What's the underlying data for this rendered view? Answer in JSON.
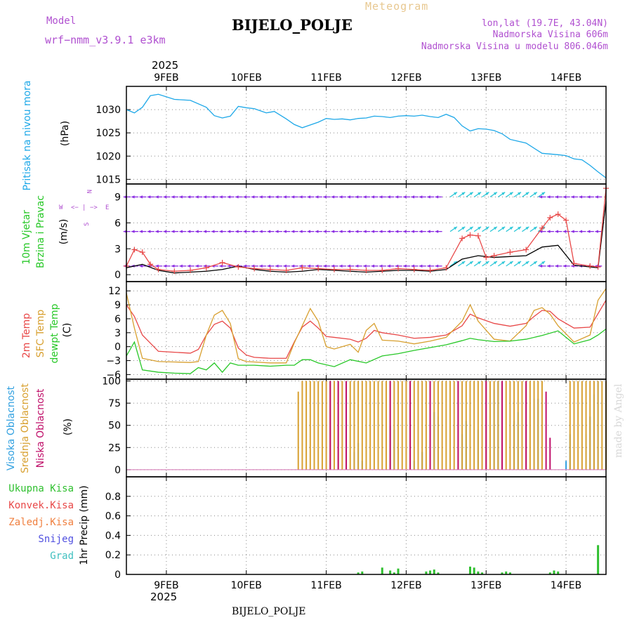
{
  "header": {
    "product": "Meteogram",
    "model_label": "Model",
    "model_name": "wrf−nmm_v3.9.1  e3km",
    "station": "BIJELO_POLJE",
    "lonlat": "lon,lat (19.7E, 43.04N)",
    "altitude": "Nadmorska Visina 606m",
    "model_altitude": "Nadmorska Visina u modelu 806.046m",
    "year": "2025",
    "watermark": "made by Angel",
    "footer_station": "BIJELO_POLJE"
  },
  "colors": {
    "pressure": "#1ea8e8",
    "temp2m": "#e84848",
    "sfc": "#d8a030",
    "dew": "#28c828",
    "high_cloud": "#30a0e0",
    "mid_cloud": "#d8a030",
    "low_cloud": "#c0106a",
    "precip_total": "#30c030",
    "wind_speed_model": "#000000",
    "wind_obs": "#e84848",
    "arrows_calm": "#8a2be2",
    "arrows_strong": "#30c8d8"
  },
  "chart_data": [
    {
      "type": "line",
      "panel": "pressure",
      "title": "Pritisak na nivou mora",
      "ylabel": "(hPa)",
      "ylim": [
        1014,
        1035
      ],
      "yticks": [
        "1015",
        "1020",
        "1025",
        "1030"
      ],
      "ytick_values": [
        1015,
        1020,
        1025,
        1030
      ],
      "series": [
        {
          "name": "Pritisak",
          "color": "#1ea8e8",
          "x": [
            0,
            0.1,
            0.2,
            0.3,
            0.4,
            0.6,
            0.8,
            1.0,
            1.1,
            1.2,
            1.3,
            1.4,
            1.5,
            1.6,
            1.7,
            1.75,
            1.85,
            2.0,
            2.1,
            2.2,
            2.4,
            2.5,
            2.6,
            2.7,
            2.8,
            2.9,
            3.0,
            3.1,
            3.2,
            3.3,
            3.4,
            3.5,
            3.6,
            3.7,
            3.8,
            3.9,
            4.0,
            4.1,
            4.2,
            4.3,
            4.4,
            4.5,
            4.6,
            4.7,
            4.8,
            4.9,
            5.0,
            5.2,
            5.4,
            5.5,
            5.6,
            5.7,
            5.8,
            5.9,
            6.0
          ],
          "values": [
            1030.0,
            1029.3,
            1030.5,
            1033.0,
            1033.3,
            1032.2,
            1032.0,
            1030.5,
            1028.7,
            1028.2,
            1028.6,
            1030.7,
            1030.4,
            1030.2,
            1029.6,
            1029.3,
            1029.6,
            1028.0,
            1026.8,
            1026.1,
            1027.3,
            1028.1,
            1027.9,
            1028.0,
            1027.8,
            1028.1,
            1028.2,
            1028.6,
            1028.5,
            1028.3,
            1028.6,
            1028.7,
            1028.6,
            1028.8,
            1028.5,
            1028.3,
            1029.0,
            1028.3,
            1026.5,
            1025.4,
            1025.9,
            1025.8,
            1025.5,
            1024.8,
            1023.6,
            1023.2,
            1022.8,
            1020.6,
            1020.3,
            1020.1,
            1019.4,
            1019.2,
            1018.0,
            1016.6,
            1015.3
          ]
        }
      ]
    },
    {
      "type": "line",
      "panel": "wind",
      "title": "10m Vjetar",
      "title2": "Brzina i Pravac",
      "ylabel": "(m/s)",
      "compass": {
        "west": "W",
        "east": "E",
        "north": "N",
        "south": "S",
        "left_arrow": "<−",
        "right_arrow": "−>",
        "bar": "|"
      },
      "ylim": [
        -0.8,
        10.5
      ],
      "yticks": [
        "0",
        "3",
        "6",
        "9"
      ],
      "ytick_values": [
        0,
        3,
        6,
        9
      ],
      "arrow_rows": [
        1,
        5,
        9
      ],
      "series": [
        {
          "name": "Brzina vjetra (model)",
          "color": "#000000",
          "x": [
            0,
            0.2,
            0.4,
            0.6,
            0.8,
            1.0,
            1.2,
            1.4,
            1.6,
            1.8,
            2.0,
            2.2,
            2.4,
            2.6,
            2.8,
            3.0,
            3.2,
            3.4,
            3.6,
            3.8,
            4.0,
            4.2,
            4.4,
            4.6,
            4.8,
            5.0,
            5.2,
            5.4,
            5.6,
            5.8,
            5.9,
            6.0
          ],
          "values": [
            0.8,
            1.2,
            0.5,
            0.2,
            0.3,
            0.4,
            0.6,
            1.0,
            0.6,
            0.4,
            0.3,
            0.4,
            0.6,
            0.5,
            0.4,
            0.3,
            0.4,
            0.5,
            0.5,
            0.4,
            0.6,
            1.8,
            2.2,
            2.0,
            2.1,
            2.2,
            3.2,
            3.4,
            1.1,
            0.9,
            0.8,
            8.5
          ]
        },
        {
          "name": "Udari vjetra",
          "color": "#e84848",
          "x": [
            0,
            0.1,
            0.2,
            0.3,
            0.4,
            0.6,
            0.8,
            1.0,
            1.2,
            1.4,
            1.6,
            1.8,
            2.0,
            2.2,
            2.4,
            2.6,
            2.8,
            3.0,
            3.2,
            3.4,
            3.6,
            3.8,
            4.0,
            4.2,
            4.3,
            4.4,
            4.5,
            4.6,
            4.8,
            5.0,
            5.2,
            5.3,
            5.4,
            5.5,
            5.6,
            5.8,
            5.9,
            6.0
          ],
          "values": [
            1.0,
            2.9,
            2.6,
            1.2,
            0.6,
            0.4,
            0.5,
            0.8,
            1.4,
            0.9,
            0.7,
            0.6,
            0.5,
            0.8,
            0.7,
            0.6,
            0.6,
            0.5,
            0.5,
            0.7,
            0.6,
            0.5,
            0.8,
            4.2,
            4.6,
            4.5,
            2.0,
            2.2,
            2.6,
            2.9,
            5.4,
            6.6,
            7.0,
            6.3,
            1.3,
            1.0,
            0.9,
            10.0
          ]
        }
      ]
    },
    {
      "type": "line",
      "panel": "temperature",
      "title": "2m Temp",
      "title2": "SFC Temp",
      "title3": "dewpt Temp",
      "ylabel": "(C)",
      "ylim": [
        -7,
        14
      ],
      "yticks": [
        "−6",
        "−3",
        "0",
        "3",
        "6",
        "9",
        "12"
      ],
      "ytick_values": [
        -6,
        -3,
        0,
        3,
        6,
        9,
        12
      ],
      "series": [
        {
          "name": "2m Temp",
          "color": "#e84848",
          "x": [
            0,
            0.1,
            0.2,
            0.4,
            0.6,
            0.8,
            0.9,
            1.0,
            1.1,
            1.2,
            1.3,
            1.4,
            1.5,
            1.6,
            1.8,
            2.0,
            2.1,
            2.2,
            2.3,
            2.4,
            2.5,
            2.6,
            2.8,
            2.9,
            3.0,
            3.1,
            3.2,
            3.4,
            3.6,
            3.8,
            4.0,
            4.2,
            4.3,
            4.4,
            4.6,
            4.8,
            5.0,
            5.1,
            5.2,
            5.3,
            5.4,
            5.6,
            5.8,
            6.0
          ],
          "values": [
            9,
            6.5,
            2.5,
            -1,
            -1.2,
            -1.4,
            -0.6,
            2.5,
            4.8,
            5.5,
            4,
            -0.3,
            -1.8,
            -2.3,
            -2.5,
            -2.5,
            1,
            4.2,
            5.5,
            4,
            2.2,
            2.0,
            1.6,
            1.0,
            1.8,
            3.5,
            3,
            2.5,
            1.8,
            2.0,
            2.5,
            4.5,
            7,
            6.2,
            5.0,
            4.4,
            5,
            6.5,
            7.8,
            7.6,
            6,
            4,
            4.2,
            10
          ]
        },
        {
          "name": "SFC Temp",
          "color": "#d8a030",
          "x": [
            0,
            0.1,
            0.2,
            0.4,
            0.6,
            0.8,
            0.9,
            1.0,
            1.1,
            1.2,
            1.3,
            1.4,
            1.5,
            1.6,
            1.8,
            2.0,
            2.1,
            2.2,
            2.3,
            2.4,
            2.5,
            2.6,
            2.8,
            2.9,
            3.0,
            3.1,
            3.2,
            3.4,
            3.6,
            3.8,
            4.0,
            4.2,
            4.3,
            4.4,
            4.6,
            4.8,
            5.0,
            5.1,
            5.2,
            5.3,
            5.4,
            5.6,
            5.8,
            5.9,
            6.0
          ],
          "values": [
            11.5,
            4,
            -2.5,
            -3.2,
            -3.3,
            -3.4,
            -3.2,
            2.5,
            6.8,
            7.8,
            5,
            -2.6,
            -3.2,
            -3.3,
            -3.5,
            -3.5,
            0.8,
            4.5,
            8.2,
            5.5,
            0,
            -0.5,
            0.5,
            -1.2,
            3.5,
            5,
            1.4,
            1.2,
            0.6,
            1.2,
            2,
            5.5,
            9,
            5.5,
            1.6,
            1.2,
            4.5,
            7.8,
            8.4,
            7.0,
            4.5,
            1.0,
            2.5,
            10,
            12.5
          ]
        },
        {
          "name": "dewpt Temp",
          "color": "#28c828",
          "x": [
            0,
            0.1,
            0.2,
            0.4,
            0.6,
            0.8,
            0.9,
            1.0,
            1.1,
            1.2,
            1.3,
            1.4,
            1.6,
            1.8,
            2.0,
            2.1,
            2.2,
            2.3,
            2.4,
            2.6,
            2.8,
            3.0,
            3.2,
            3.4,
            3.6,
            3.8,
            4.0,
            4.2,
            4.3,
            4.4,
            4.6,
            4.8,
            5.0,
            5.2,
            5.4,
            5.5,
            5.6,
            5.8,
            5.9,
            6.0
          ],
          "values": [
            -2,
            1,
            -5,
            -5.5,
            -5.7,
            -5.8,
            -4.5,
            -5,
            -3.5,
            -5.5,
            -3.5,
            -4,
            -4,
            -4.2,
            -4.0,
            -4.0,
            -2.8,
            -2.8,
            -3.5,
            -4.3,
            -2.8,
            -3.5,
            -2.0,
            -1.5,
            -0.8,
            -0.2,
            0.4,
            1.3,
            1.8,
            1.5,
            1.1,
            1.2,
            1.6,
            2.4,
            3.4,
            2.0,
            0.6,
            1.5,
            2.5,
            3.8
          ]
        }
      ]
    },
    {
      "type": "bar",
      "panel": "clouds",
      "title": "Visoka Oblacnost",
      "title2": "Srednja Oblacnost",
      "title3": "Niska Oblacnost",
      "ylabel": "(%)",
      "ylim": [
        -8,
        102
      ],
      "yticks": [
        "0",
        "25",
        "50",
        "75",
        "100"
      ],
      "ytick_values": [
        0,
        25,
        50,
        75,
        100
      ],
      "series": [
        {
          "name": "Visoka Oblacnost",
          "color": "#30a0e0",
          "x": [
            2.85,
            2.9,
            2.95,
            3.3,
            3.35,
            3.4,
            3.6,
            3.7,
            3.85,
            3.9,
            4.2,
            4.25,
            4.4,
            4.6,
            4.65,
            4.85,
            4.9,
            5.1,
            5.15,
            5.5,
            5.55,
            5.75,
            5.8,
            5.85,
            5.9
          ],
          "values": [
            20,
            30,
            10,
            50,
            45,
            30,
            10,
            20,
            65,
            60,
            40,
            55,
            45,
            90,
            100,
            55,
            65,
            80,
            80,
            10,
            40,
            40,
            60,
            85,
            100
          ]
        },
        {
          "name": "Srednja Oblacnost",
          "color": "#d8a030",
          "x": [
            2.15,
            2.2,
            2.25,
            2.3,
            2.35,
            2.4,
            2.45,
            2.5,
            2.55,
            2.6,
            2.65,
            2.7,
            2.75,
            2.8,
            2.85,
            2.9,
            2.95,
            3.0,
            3.05,
            3.1,
            3.15,
            3.2,
            3.25,
            3.3,
            3.35,
            3.4,
            3.45,
            3.5,
            3.55,
            3.6,
            3.65,
            3.7,
            3.75,
            3.8,
            3.85,
            3.9,
            3.95,
            4.0,
            4.05,
            4.1,
            4.15,
            4.2,
            4.25,
            4.3,
            4.35,
            4.4,
            4.45,
            4.5,
            4.55,
            4.6,
            4.65,
            4.7,
            4.75,
            4.8,
            4.85,
            4.9,
            4.95,
            5.0,
            5.05,
            5.1,
            5.15,
            5.2,
            5.55,
            5.6,
            5.65,
            5.7,
            5.75,
            5.8,
            5.85,
            5.9,
            5.95,
            6.0
          ],
          "values": [
            88,
            100,
            100,
            100,
            100,
            100,
            100,
            100,
            100,
            100,
            100,
            100,
            100,
            100,
            100,
            100,
            100,
            100,
            100,
            100,
            100,
            100,
            100,
            100,
            100,
            100,
            100,
            100,
            100,
            100,
            100,
            100,
            100,
            100,
            100,
            100,
            100,
            100,
            100,
            100,
            100,
            100,
            100,
            100,
            100,
            100,
            100,
            100,
            100,
            100,
            100,
            100,
            100,
            100,
            100,
            100,
            100,
            100,
            100,
            100,
            100,
            100,
            100,
            100,
            100,
            100,
            100,
            100,
            100,
            100,
            100,
            100
          ]
        },
        {
          "name": "Niska Oblacnost",
          "color": "#c0106a",
          "x": [
            2.55,
            2.65,
            2.75,
            3.3,
            3.55,
            3.8,
            4.15,
            4.5,
            4.7,
            5.0,
            5.25,
            5.3
          ],
          "values": [
            100,
            100,
            100,
            100,
            100,
            100,
            100,
            100,
            100,
            100,
            88,
            36
          ]
        }
      ]
    },
    {
      "type": "bar",
      "panel": "precip",
      "title": "1hr Precip (mm)",
      "legend": [
        "Ukupna  Kisa",
        "Konvek.Kisa",
        "Zaledj.Kisa",
        "Snijeg",
        "Grad"
      ],
      "legend_colors": [
        "#30c030",
        "#e84848",
        "#f08040",
        "#5050e0",
        "#40c0c0"
      ],
      "ylim": [
        0,
        1.0
      ],
      "yticks": [
        "0",
        "0.2",
        "0.4",
        "0.6",
        "0.8"
      ],
      "ytick_values": [
        0,
        0.2,
        0.4,
        0.6,
        0.8
      ],
      "series": [
        {
          "name": "Ukupna Kisa",
          "color": "#30c030",
          "x": [
            2.9,
            2.95,
            3.2,
            3.3,
            3.35,
            3.4,
            3.75,
            3.8,
            3.85,
            3.9,
            4.3,
            4.35,
            4.4,
            4.45,
            4.7,
            4.75,
            4.8,
            5.3,
            5.35,
            5.4,
            5.9
          ],
          "values": [
            0.02,
            0.03,
            0.07,
            0.04,
            0.02,
            0.06,
            0.03,
            0.04,
            0.05,
            0.02,
            0.08,
            0.07,
            0.03,
            0.02,
            0.02,
            0.03,
            0.02,
            0.02,
            0.04,
            0.03,
            0.3
          ]
        }
      ]
    }
  ],
  "x_axis": {
    "labels": [
      "9FEB",
      "10FEB",
      "11FEB",
      "12FEB",
      "13FEB",
      "14FEB"
    ],
    "positions": [
      0.5,
      1.5,
      2.5,
      3.5,
      4.5,
      5.5
    ],
    "range": [
      0,
      6
    ]
  }
}
